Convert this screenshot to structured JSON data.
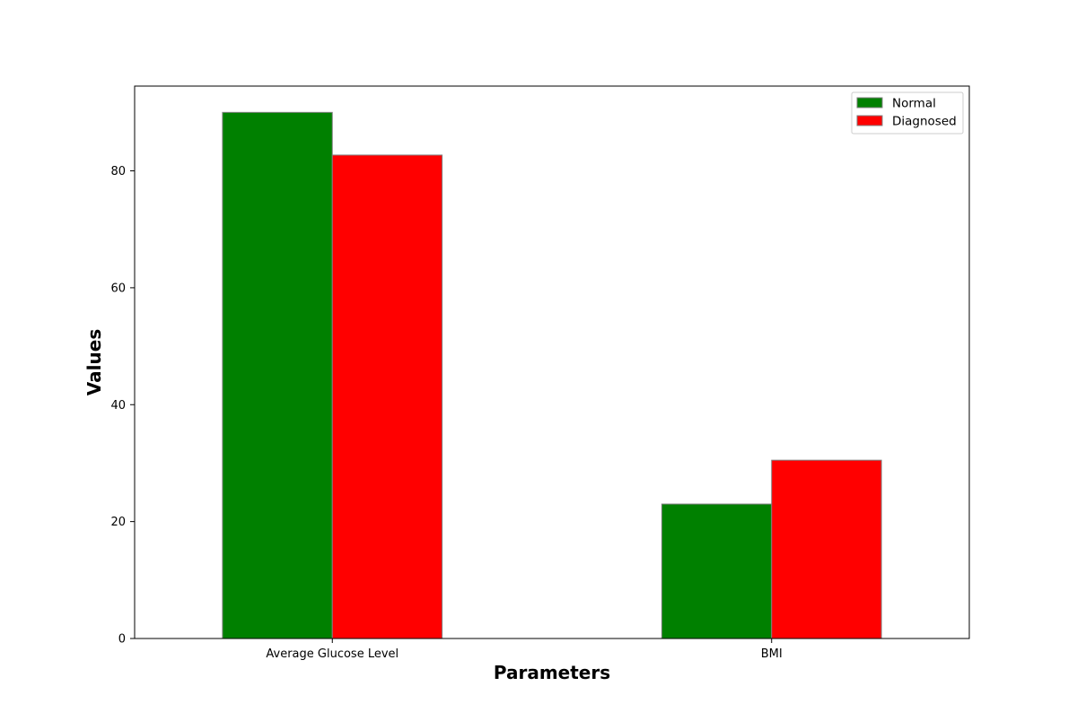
{
  "chart_data": {
    "type": "bar",
    "title": "",
    "xlabel": "Parameters",
    "ylabel": "Values",
    "categories": [
      "Average Glucose Level",
      "BMI"
    ],
    "series": [
      {
        "name": "Normal",
        "values": [
          90.0,
          23.0
        ],
        "color": "#008000"
      },
      {
        "name": "Diagnosed",
        "values": [
          82.7,
          30.5
        ],
        "color": "#ff0000"
      }
    ],
    "ylim": [
      0,
      94.5
    ],
    "yticks": [
      0,
      20,
      40,
      60,
      80
    ],
    "grid": false,
    "legend_position": "top-right",
    "bar_edge_color": "#808080"
  }
}
